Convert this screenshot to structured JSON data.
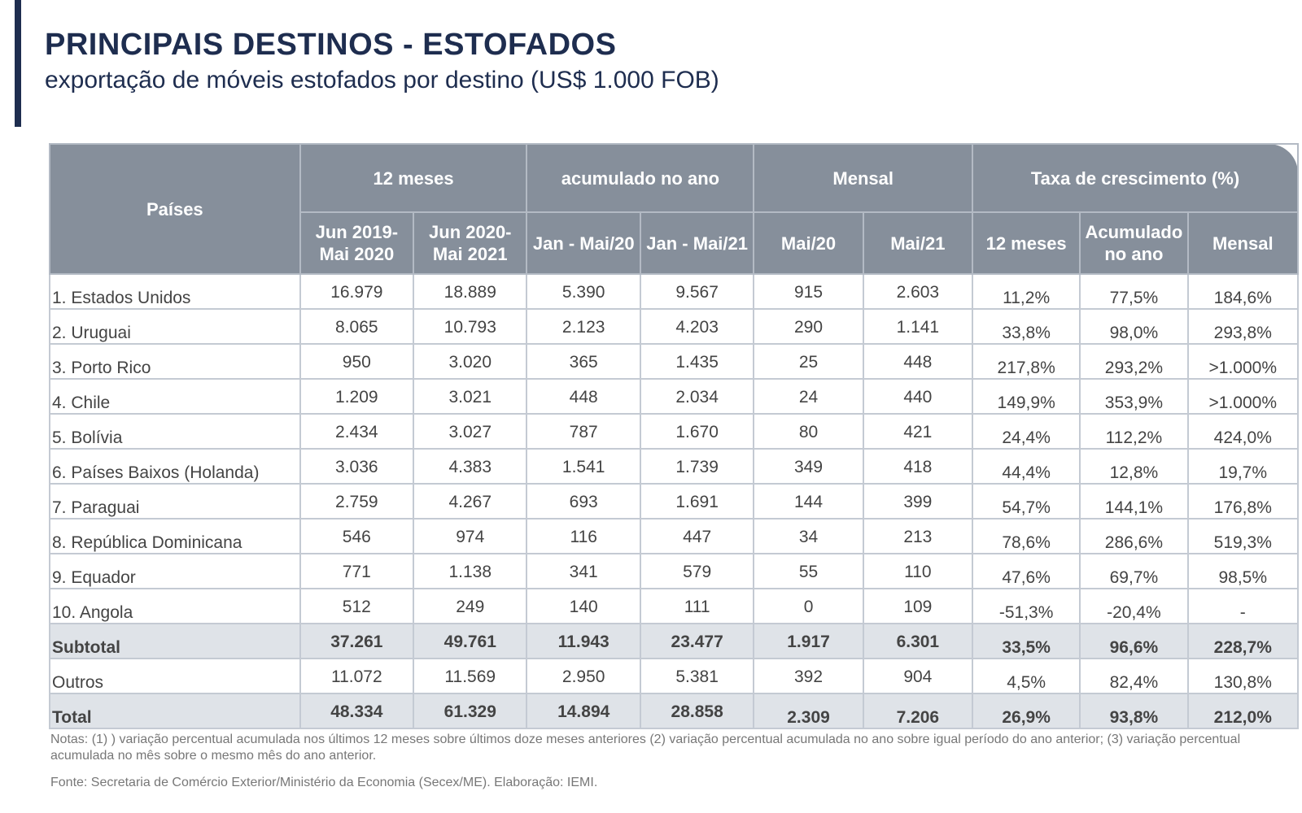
{
  "header": {
    "title": "PRINCIPAIS DESTINOS - ESTOFADOS",
    "subtitle": "exportação de móveis estofados por destino (US$ 1.000 FOB)"
  },
  "table": {
    "col_paises": "Países",
    "groups": {
      "doze_meses": "12 meses",
      "acumulado": "acumulado no ano",
      "mensal": "Mensal",
      "taxa": "Taxa de crescimento (%)"
    },
    "subheads": {
      "jun19": "Jun 2019- Mai 2020",
      "jun20": "Jun 2020- Mai 2021",
      "jan20": "Jan - Mai/20",
      "jan21": "Jan - Mai/21",
      "mai20": "Mai/20",
      "mai21": "Mai/21",
      "taxa12": "12 meses",
      "taxa_acum": "Acumulado no ano",
      "taxa_mensal": "Mensal"
    },
    "rows": [
      [
        "1. Estados Unidos",
        "16.979",
        "18.889",
        "5.390",
        "9.567",
        "915",
        "2.603",
        "11,2%",
        "77,5%",
        "184,6%"
      ],
      [
        "2. Uruguai",
        "8.065",
        "10.793",
        "2.123",
        "4.203",
        "290",
        "1.141",
        "33,8%",
        "98,0%",
        "293,8%"
      ],
      [
        "3. Porto Rico",
        "950",
        "3.020",
        "365",
        "1.435",
        "25",
        "448",
        "217,8%",
        "293,2%",
        ">1.000%"
      ],
      [
        "4. Chile",
        "1.209",
        "3.021",
        "448",
        "2.034",
        "24",
        "440",
        "149,9%",
        "353,9%",
        ">1.000%"
      ],
      [
        "5. Bolívia",
        "2.434",
        "3.027",
        "787",
        "1.670",
        "80",
        "421",
        "24,4%",
        "112,2%",
        "424,0%"
      ],
      [
        "6. Países Baixos (Holanda)",
        "3.036",
        "4.383",
        "1.541",
        "1.739",
        "349",
        "418",
        "44,4%",
        "12,8%",
        "19,7%"
      ],
      [
        "7. Paraguai",
        "2.759",
        "4.267",
        "693",
        "1.691",
        "144",
        "399",
        "54,7%",
        "144,1%",
        "176,8%"
      ],
      [
        "8. República Dominicana",
        "546",
        "974",
        "116",
        "447",
        "34",
        "213",
        "78,6%",
        "286,6%",
        "519,3%"
      ],
      [
        "9. Equador",
        "771",
        "1.138",
        "341",
        "579",
        "55",
        "110",
        "47,6%",
        "69,7%",
        "98,5%"
      ],
      [
        "10. Angola",
        "512",
        "249",
        "140",
        "111",
        "0",
        "109",
        "-51,3%",
        "-20,4%",
        "-"
      ]
    ],
    "subtotal": [
      "Subtotal",
      "37.261",
      "49.761",
      "11.943",
      "23.477",
      "1.917",
      "6.301",
      "33,5%",
      "96,6%",
      "228,7%"
    ],
    "outros": [
      "Outros",
      "11.072",
      "11.569",
      "2.950",
      "5.381",
      "392",
      "904",
      "4,5%",
      "82,4%",
      "130,8%"
    ],
    "total": [
      "Total",
      "48.334",
      "61.329",
      "14.894",
      "28.858",
      "2.309",
      "7.206",
      "26,9%",
      "93,8%",
      "212,0%"
    ]
  },
  "footer": {
    "notes": "Notas: (1) ) variação percentual acumulada nos últimos 12 meses sobre últimos doze meses anteriores (2) variação percentual acumulada no ano sobre igual período do ano anterior; (3) variação percentual acumulada no mês sobre o mesmo mês do ano anterior.",
    "source": "Fonte: Secretaria de Comércio Exterior/Ministério da Economia (Secex/ME). Elaboração: IEMI."
  }
}
